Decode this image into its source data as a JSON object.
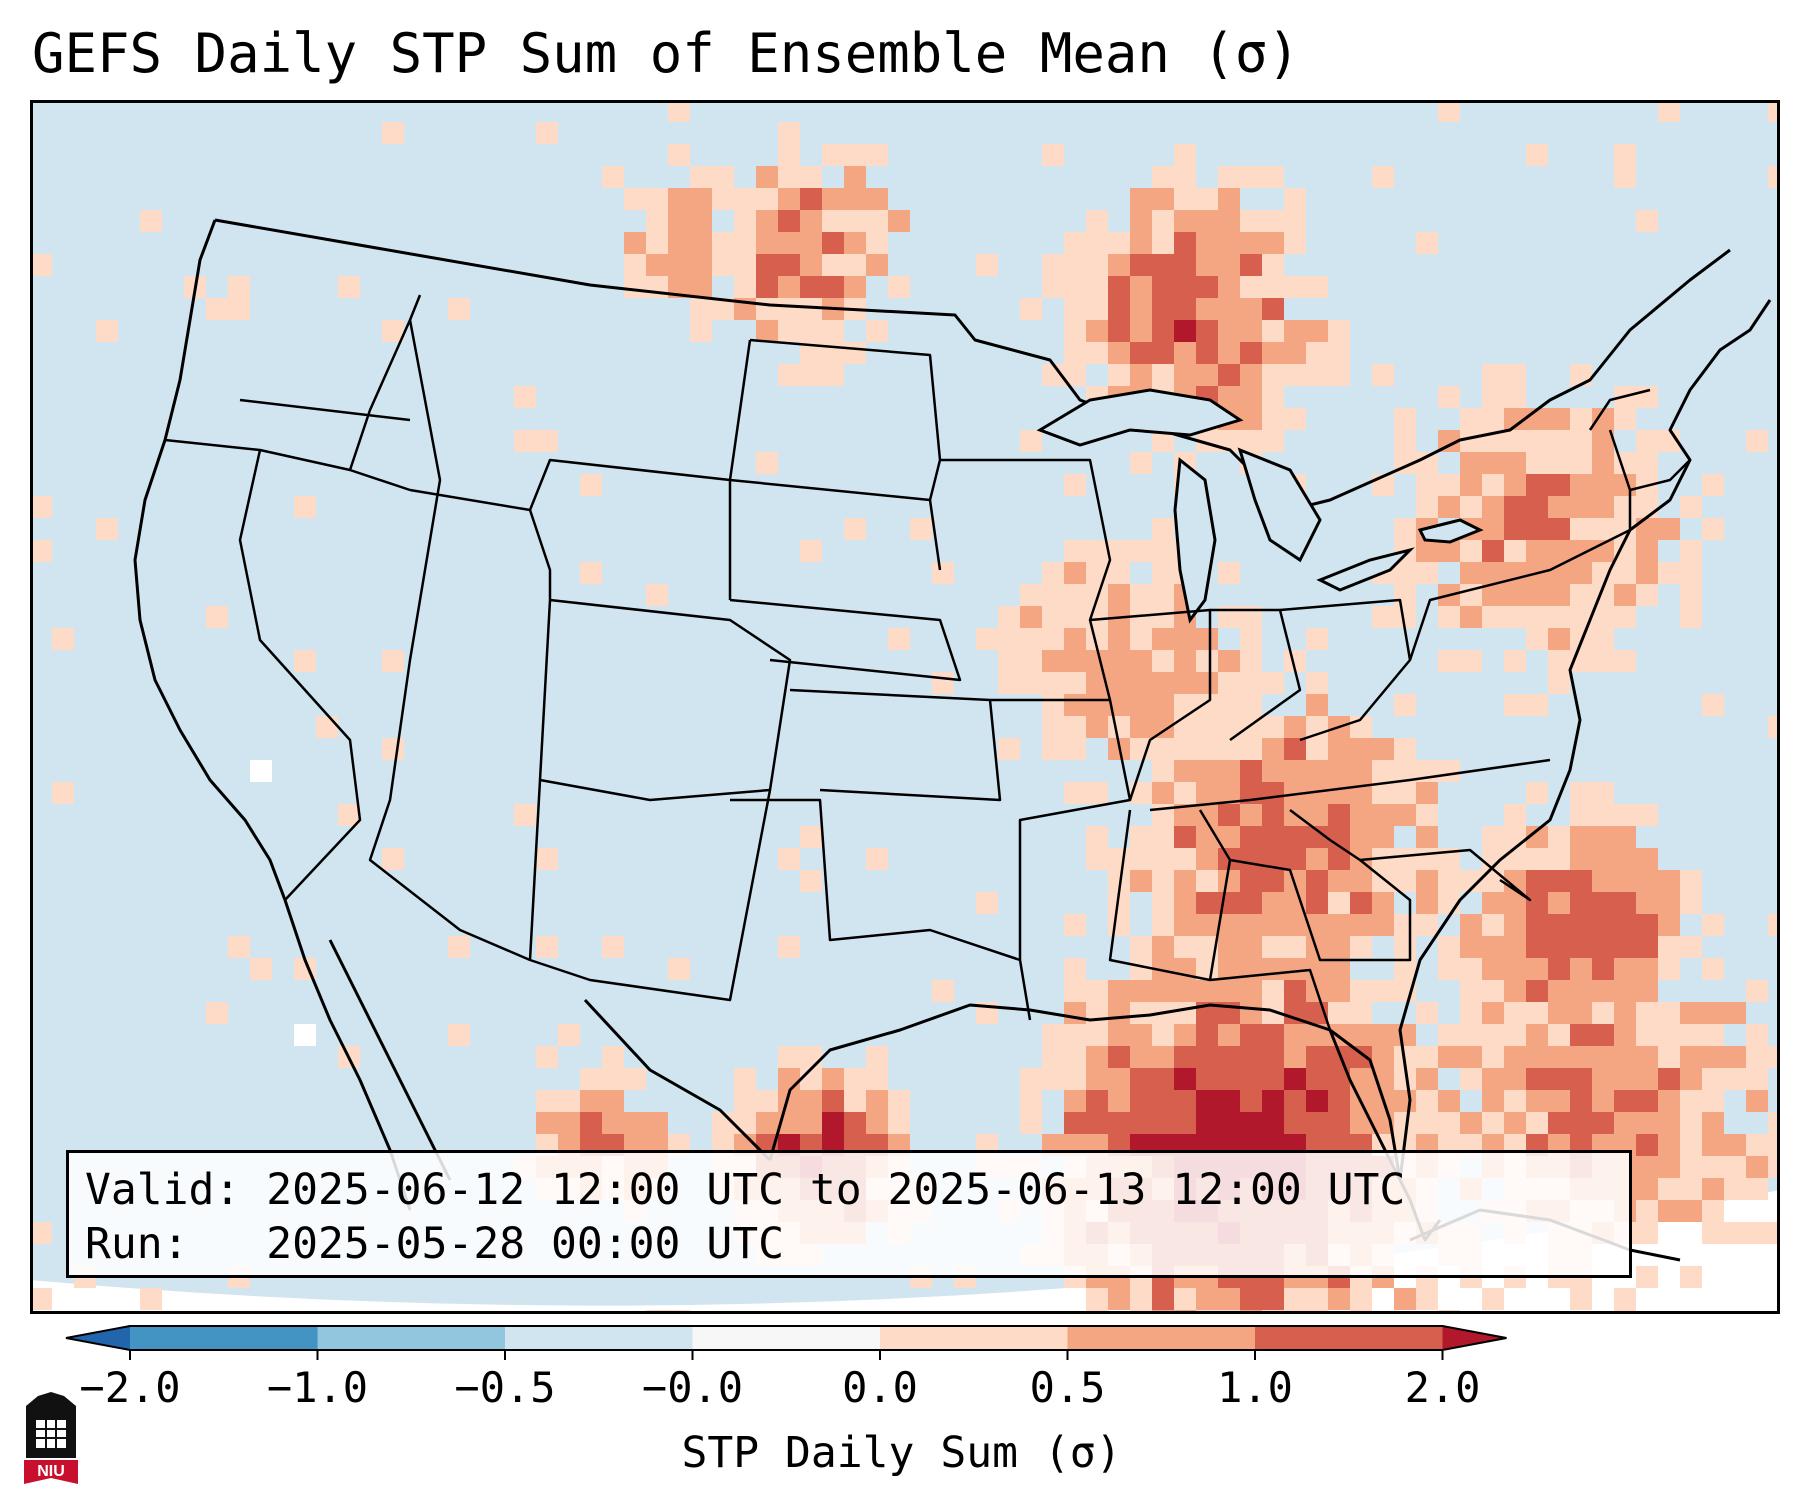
{
  "title": "GEFS Daily STP Sum of Ensemble Mean (σ)",
  "info": {
    "valid_label": "Valid:",
    "valid_value": "2025-06-12 12:00 UTC to 2025-06-13 12:00 UTC",
    "run_label": "Run:",
    "run_value": "2025-05-28 00:00 UTC"
  },
  "colorbar": {
    "label": "STP Daily Sum (σ)",
    "ticks": [
      "−2.0",
      "−1.0",
      "−0.5",
      "−0.0",
      "0.0",
      "0.5",
      "1.0",
      "2.0"
    ],
    "bins": [
      {
        "from": -2.0,
        "to": -1.0,
        "color": "#4393c3"
      },
      {
        "from": -1.0,
        "to": -0.5,
        "color": "#92c5de"
      },
      {
        "from": -0.5,
        "to": -0.0,
        "color": "#d1e5f0"
      },
      {
        "from": -0.0,
        "to": 0.0,
        "color": "#f7f7f7"
      },
      {
        "from": 0.0,
        "to": 0.5,
        "color": "#fddbc7"
      },
      {
        "from": 0.5,
        "to": 1.0,
        "color": "#f4a582"
      },
      {
        "from": 1.0,
        "to": 2.0,
        "color": "#d6604d"
      }
    ],
    "extend_low_color": "#2166ac",
    "extend_high_color": "#b2182b"
  },
  "map": {
    "background_color": "#d1e5f0",
    "outside_color": "#ffffff",
    "line_color": "#000000"
  },
  "logo": {
    "text": "NIU",
    "color": "#c8102e"
  }
}
